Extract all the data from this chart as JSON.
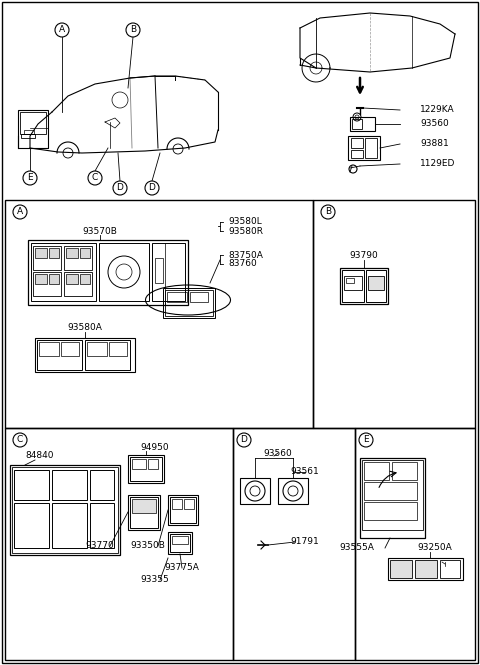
{
  "bg_color": "#ffffff",
  "line_color": "#000000",
  "part_numbers_top_right": [
    "1229KA",
    "93560",
    "93881",
    "1129ED"
  ],
  "part_A": {
    "main": "93570B",
    "sub1": "93580A",
    "sub2": "93580L",
    "sub3": "93580R",
    "sub4": "83750A",
    "sub5": "83760"
  },
  "part_B": {
    "main": "93790"
  },
  "part_C": {
    "p1": "84840",
    "p2": "94950",
    "p3": "93770",
    "p4": "93350B",
    "p5": "93775A",
    "p6": "93355"
  },
  "part_D": {
    "p1": "93560",
    "p2": "93561",
    "p3": "91791"
  },
  "part_E": {
    "p1": "93555A",
    "p2": "93250A"
  }
}
